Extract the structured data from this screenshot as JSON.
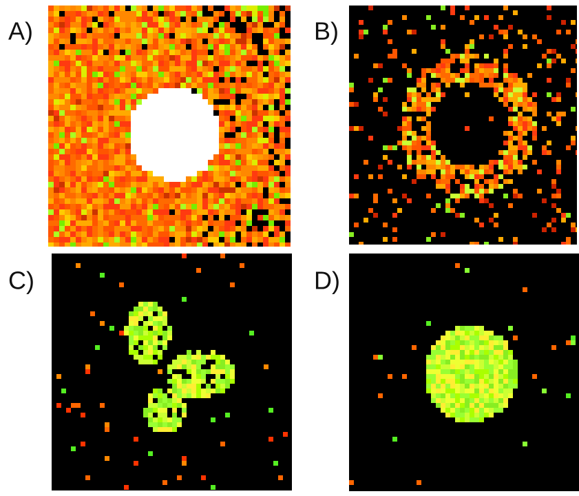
{
  "panels": [
    {
      "label": "A)"
    },
    {
      "label": "B)"
    },
    {
      "label": "C)"
    },
    {
      "label": "D)"
    }
  ]
}
